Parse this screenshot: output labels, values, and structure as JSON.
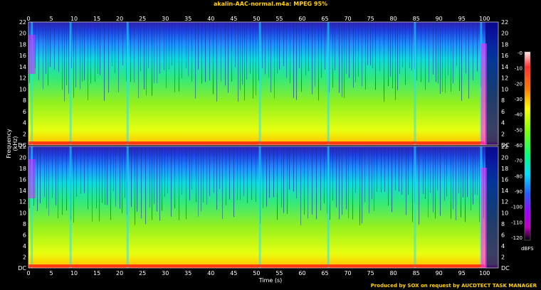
{
  "chart_data": {
    "type": "heatmap",
    "title": "akalin-AAC-normal.m4a: MPEG 95%",
    "xlabel": "Time (s)",
    "ylabel": "Frequency (kHz)",
    "x_ticks": [
      "0",
      "5",
      "10",
      "15",
      "20",
      "25",
      "30",
      "35",
      "40",
      "45",
      "50",
      "55",
      "60",
      "65",
      "70",
      "75",
      "80",
      "85",
      "90",
      "95",
      "100"
    ],
    "y_ticks": [
      "DC",
      "2",
      "4",
      "6",
      "8",
      "10",
      "12",
      "14",
      "16",
      "18",
      "20",
      "22"
    ],
    "xlim": [
      0,
      103
    ],
    "ylim_khz": [
      0,
      22
    ],
    "channels": 2,
    "colorbar": {
      "label": "dBFS",
      "ticks": [
        "-0",
        "-10",
        "-20",
        "-30",
        "-40",
        "-50",
        "-60",
        "-70",
        "-80",
        "-90",
        "-100",
        "-110",
        "-120"
      ],
      "range": [
        -120,
        0
      ]
    },
    "credit": "Produced by SOX on request by AUCDTECT TASK MANAGER"
  }
}
